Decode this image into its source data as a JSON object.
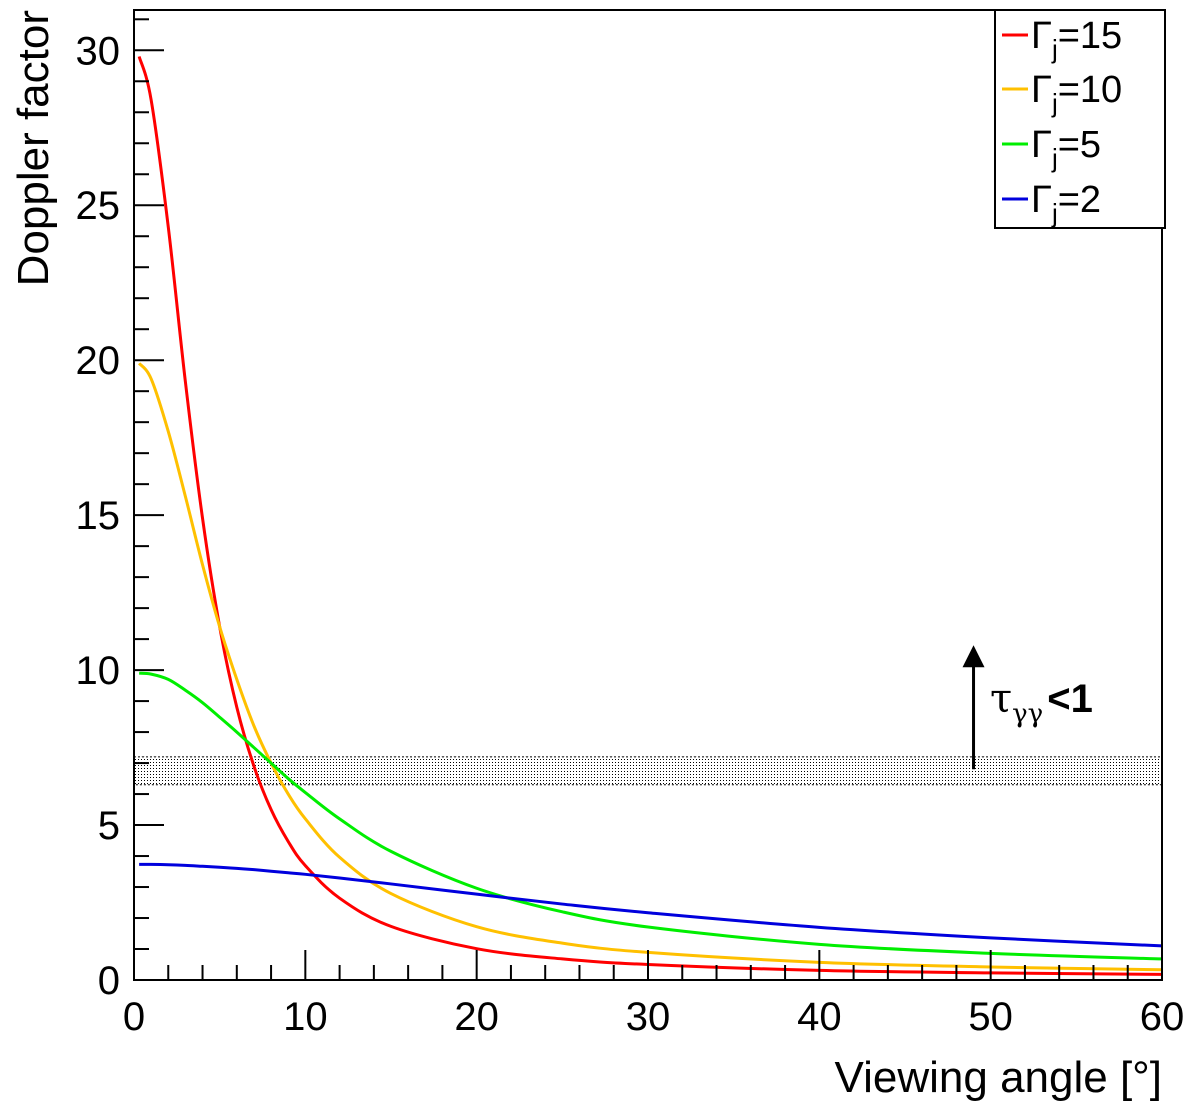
{
  "chart_data": {
    "type": "line",
    "xlabel": "Viewing angle [°]",
    "ylabel": "Doppler factor",
    "xlim": [
      0,
      60
    ],
    "ylim": [
      0,
      31.3
    ],
    "x_ticks": [
      "0",
      "10",
      "20",
      "30",
      "40",
      "50",
      "60"
    ],
    "y_ticks": [
      "0",
      "5",
      "10",
      "15",
      "20",
      "25",
      "30"
    ],
    "legend_position": "top-right",
    "series": [
      {
        "name": "Γj=15",
        "legend_main": "Γ",
        "legend_sub": "j",
        "legend_value": "=15",
        "color": "#ff0000",
        "gamma": 15,
        "x": [
          0.3,
          1,
          2,
          3,
          4,
          5,
          6,
          7,
          8,
          9,
          10,
          12,
          15,
          20,
          25,
          30,
          40,
          50,
          60
        ],
        "y": [
          29.8,
          28.4,
          24.3,
          19.3,
          14.9,
          11.4,
          8.8,
          6.9,
          5.5,
          4.47,
          3.69,
          2.64,
          1.73,
          1.01,
          0.68,
          0.5,
          0.31,
          0.23,
          0.18
        ]
      },
      {
        "name": "Γj=10",
        "legend_main": "Γ",
        "legend_sub": "j",
        "legend_value": "=10",
        "color": "#ffc000",
        "gamma": 10,
        "x": [
          0.3,
          1,
          2,
          3,
          4,
          5,
          6,
          7,
          8,
          9,
          10,
          12,
          15,
          20,
          25,
          30,
          40,
          50,
          60
        ],
        "y": [
          19.9,
          19.4,
          17.7,
          15.6,
          13.4,
          11.4,
          9.7,
          8.2,
          7.0,
          6.0,
          5.2,
          3.96,
          2.79,
          1.72,
          1.19,
          0.89,
          0.57,
          0.42,
          0.33
        ]
      },
      {
        "name": "Γj=5",
        "legend_main": "Γ",
        "legend_sub": "j",
        "legend_value": "=5",
        "color": "#00ee00",
        "gamma": 5,
        "x": [
          0.3,
          1,
          2,
          3,
          4,
          5,
          6,
          7,
          8,
          9,
          10,
          12,
          15,
          20,
          25,
          30,
          40,
          50,
          60
        ],
        "y": [
          9.9,
          9.87,
          9.7,
          9.35,
          8.95,
          8.48,
          8.0,
          7.5,
          7.0,
          6.5,
          6.05,
          5.2,
          4.15,
          2.96,
          2.2,
          1.71,
          1.15,
          0.86,
          0.68
        ]
      },
      {
        "name": "Γj=2",
        "legend_main": "Γ",
        "legend_sub": "j",
        "legend_value": "=2",
        "color": "#0000dd",
        "gamma": 2,
        "x": [
          0.3,
          1,
          2,
          3,
          4,
          5,
          6,
          7,
          8,
          9,
          10,
          12,
          15,
          20,
          25,
          30,
          40,
          50,
          60
        ],
        "y": [
          3.73,
          3.73,
          3.72,
          3.7,
          3.67,
          3.64,
          3.6,
          3.56,
          3.51,
          3.46,
          3.41,
          3.29,
          3.1,
          2.77,
          2.45,
          2.17,
          1.7,
          1.36,
          1.1
        ]
      }
    ],
    "band": {
      "y_low": 6.3,
      "y_high": 7.2
    },
    "annotation": {
      "main": "τ",
      "sub": "γγ",
      "rest": "<1",
      "arrow_from_y": 6.8,
      "arrow_to_y": 10.8,
      "arrow_x": 49
    }
  }
}
